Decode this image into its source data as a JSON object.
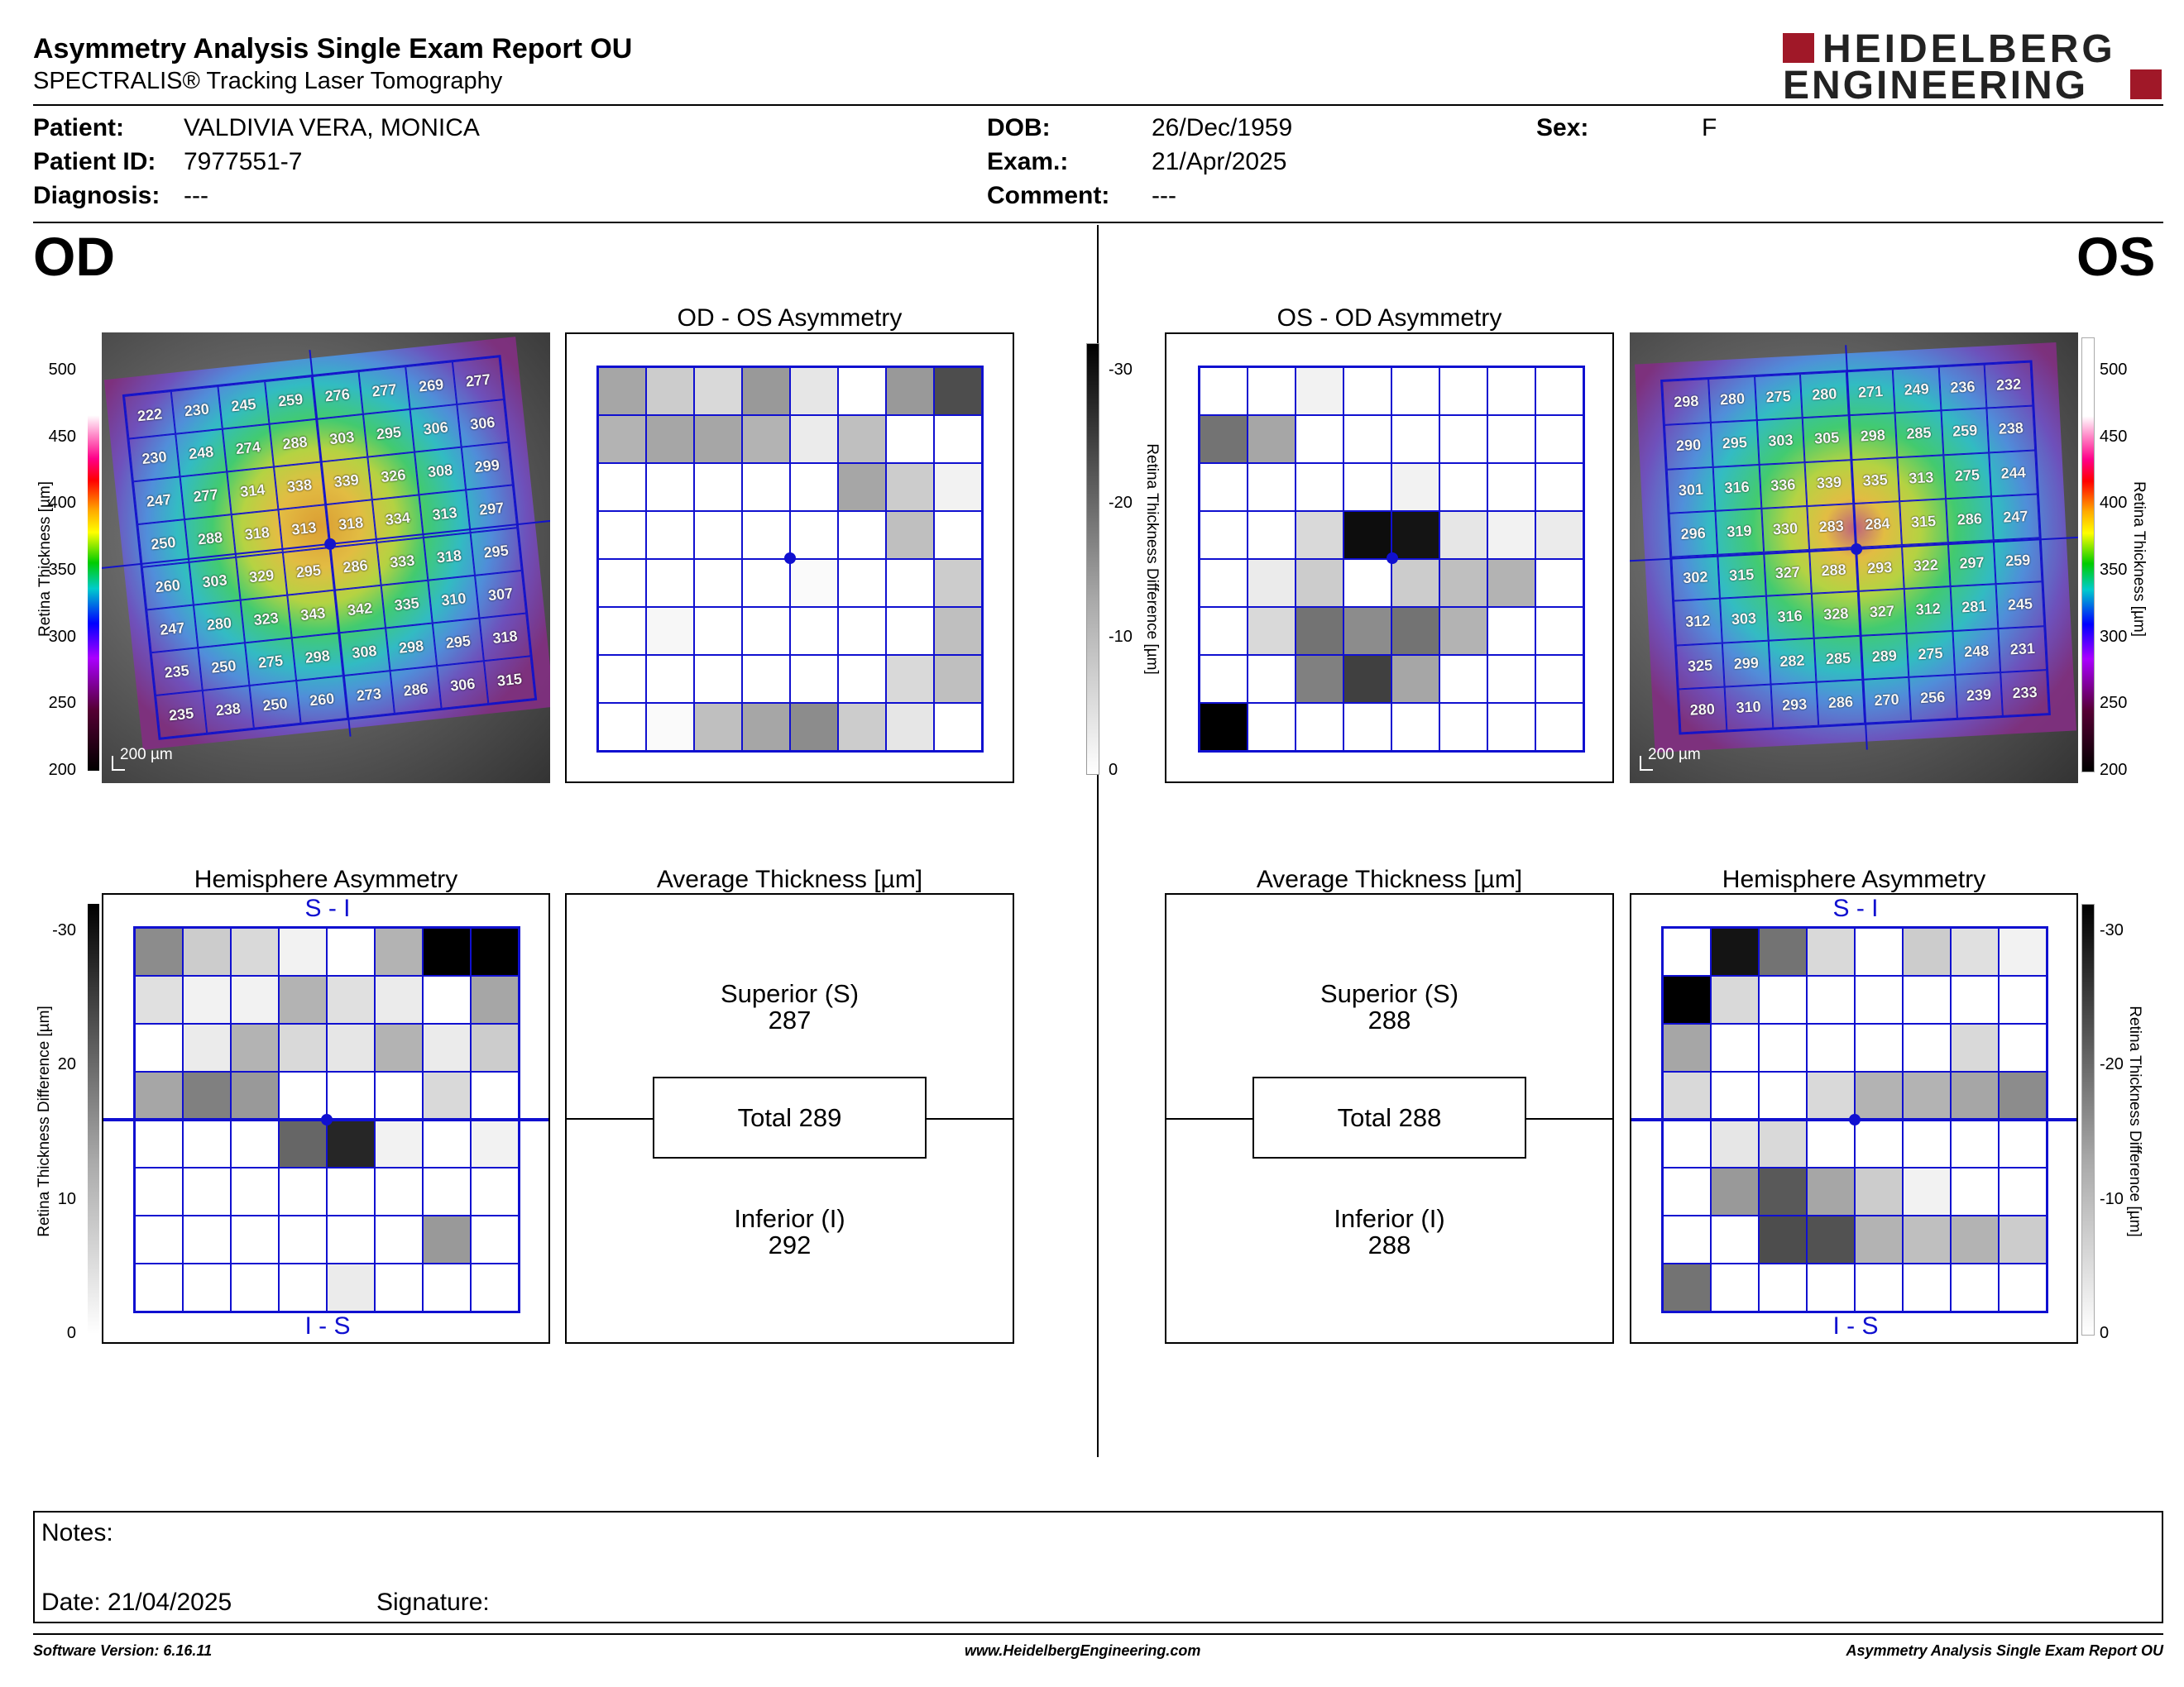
{
  "header": {
    "title": "Asymmetry Analysis Single Exam Report OU",
    "subtitle": "SPECTRALIS® Tracking Laser Tomography",
    "logo_line1": "HEIDELBERG",
    "logo_line2": "ENGINEERING"
  },
  "patient": {
    "patient_label": "Patient:",
    "patient_value": "VALDIVIA VERA, MONICA",
    "id_label": "Patient ID:",
    "id_value": "7977551-7",
    "diagnosis_label": "Diagnosis:",
    "diagnosis_value": "---",
    "dob_label": "DOB:",
    "dob_value": "26/Dec/1959",
    "exam_label": "Exam.:",
    "exam_value": "21/Apr/2025",
    "comment_label": "Comment:",
    "comment_value": "---",
    "sex_label": "Sex:",
    "sex_value": "F"
  },
  "eyes": {
    "od": "OD",
    "os": "OS"
  },
  "panels": {
    "od_os_title": "OD - OS Asymmetry",
    "os_od_title": "OS - OD Asymmetry",
    "hemi_title": "Hemisphere Asymmetry",
    "avg_title": "Average Thickness [µm]",
    "si_label": "S - I",
    "is_label": "I - S",
    "scale_bar_label": "200 µm"
  },
  "axes": {
    "thickness_label": "Retina   Thickness [µm]",
    "thickness_ticks": [
      "500",
      "450",
      "400",
      "350",
      "300",
      "250",
      "200"
    ],
    "diff_label": "Retina Thickness Difference [µm]",
    "diff_ticks_center": [
      "-30",
      "-20",
      "-10",
      "0"
    ],
    "diff_ticks_left": [
      "-30",
      "20",
      "10",
      "0"
    ]
  },
  "colors": {
    "grid_blue": "#1010d0"
  },
  "od_thickness": [
    [
      "222",
      "230",
      "245",
      "259",
      "276",
      "277",
      "269",
      "277"
    ],
    [
      "230",
      "248",
      "274",
      "288",
      "303",
      "295",
      "306",
      "306"
    ],
    [
      "247",
      "277",
      "314",
      "338",
      "339",
      "326",
      "308",
      "299"
    ],
    [
      "250",
      "288",
      "318",
      "313",
      "318",
      "334",
      "313",
      "297"
    ],
    [
      "260",
      "303",
      "329",
      "295",
      "286",
      "333",
      "318",
      "295"
    ],
    [
      "247",
      "280",
      "323",
      "343",
      "342",
      "335",
      "310",
      "307"
    ],
    [
      "235",
      "250",
      "275",
      "298",
      "308",
      "298",
      "295",
      "318"
    ],
    [
      "235",
      "238",
      "250",
      "260",
      "273",
      "286",
      "306",
      "315"
    ]
  ],
  "os_thickness": [
    [
      "298",
      "280",
      "275",
      "280",
      "271",
      "249",
      "236",
      "232"
    ],
    [
      "290",
      "295",
      "303",
      "305",
      "298",
      "285",
      "259",
      "238"
    ],
    [
      "301",
      "316",
      "336",
      "339",
      "335",
      "313",
      "275",
      "244"
    ],
    [
      "296",
      "319",
      "330",
      "283",
      "284",
      "315",
      "286",
      "247"
    ],
    [
      "302",
      "315",
      "327",
      "288",
      "293",
      "322",
      "297",
      "259"
    ],
    [
      "312",
      "303",
      "316",
      "328",
      "327",
      "312",
      "281",
      "245"
    ],
    [
      "325",
      "299",
      "282",
      "285",
      "289",
      "275",
      "248",
      "231"
    ],
    [
      "280",
      "310",
      "293",
      "286",
      "270",
      "256",
      "239",
      "233"
    ]
  ],
  "od_os_asym_gray": [
    [
      0.35,
      0.2,
      0.15,
      0.4,
      0.1,
      0,
      0.4,
      0.7
    ],
    [
      0.3,
      0.35,
      0.35,
      0.3,
      0.08,
      0.25,
      0,
      0
    ],
    [
      0,
      0,
      0,
      0,
      0,
      0.35,
      0.2,
      0.05
    ],
    [
      0,
      0,
      0,
      0,
      0,
      0,
      0.25,
      0
    ],
    [
      0,
      0,
      0,
      0,
      0.02,
      0,
      0,
      0.2
    ],
    [
      0,
      0.03,
      0,
      0,
      0,
      0,
      0,
      0.25
    ],
    [
      0,
      0,
      0,
      0,
      0,
      0,
      0.15,
      0.25
    ],
    [
      0,
      0.02,
      0.25,
      0.35,
      0.45,
      0.2,
      0.1,
      0
    ]
  ],
  "os_od_asym_gray": [
    [
      0,
      0,
      0.05,
      0,
      0,
      0,
      0,
      0
    ],
    [
      0.55,
      0.35,
      0,
      0,
      0,
      0,
      0,
      0
    ],
    [
      0,
      0,
      0,
      0,
      0.05,
      0,
      0,
      0
    ],
    [
      0,
      0,
      0.15,
      0.95,
      0.92,
      0.1,
      0.05,
      0.08
    ],
    [
      0,
      0.08,
      0.2,
      0,
      0.2,
      0.25,
      0.3,
      0
    ],
    [
      0,
      0.15,
      0.55,
      0.45,
      0.55,
      0.3,
      0,
      0
    ],
    [
      0,
      0,
      0.5,
      0.75,
      0.35,
      0,
      0,
      0
    ],
    [
      1,
      0,
      0,
      0,
      0,
      0,
      0,
      0
    ]
  ],
  "od_hemi_gray": [
    [
      0.45,
      0.2,
      0.15,
      0.05,
      0,
      0.3,
      1,
      1
    ],
    [
      0.12,
      0.05,
      0.05,
      0.3,
      0.12,
      0.08,
      0,
      0.35
    ],
    [
      0,
      0.08,
      0.3,
      0.15,
      0.1,
      0.3,
      0.08,
      0.2
    ],
    [
      0.35,
      0.5,
      0.4,
      0,
      0,
      0,
      0.15,
      0
    ],
    [
      0,
      0,
      0,
      0.6,
      0.85,
      0.05,
      0,
      0.05
    ],
    [
      0,
      0,
      0,
      0,
      0,
      0,
      0,
      0
    ],
    [
      0,
      0,
      0,
      0,
      0,
      0,
      0.4,
      0
    ],
    [
      0,
      0,
      0,
      0,
      0.08,
      0,
      0,
      0
    ]
  ],
  "os_hemi_gray": [
    [
      0,
      0.92,
      0.55,
      0.15,
      0,
      0.2,
      0.12,
      0.05
    ],
    [
      1,
      0.15,
      0,
      0,
      0,
      0,
      0,
      0
    ],
    [
      0.35,
      0,
      0,
      0,
      0,
      0,
      0.15,
      0
    ],
    [
      0.15,
      0,
      0,
      0.15,
      0.3,
      0.3,
      0.35,
      0.45
    ],
    [
      0,
      0.1,
      0.15,
      0,
      0,
      0,
      0,
      0
    ],
    [
      0,
      0.4,
      0.65,
      0.35,
      0.2,
      0.05,
      0,
      0
    ],
    [
      0,
      0,
      0.7,
      0.68,
      0.3,
      0.25,
      0.3,
      0.2
    ],
    [
      0.55,
      0,
      0,
      0,
      0,
      0,
      0,
      0
    ]
  ],
  "od_avg": {
    "superior_label": "Superior (S)",
    "superior_value": "287",
    "total_text": "Total 289",
    "inferior_label": "Inferior (I)",
    "inferior_value": "292"
  },
  "os_avg": {
    "superior_label": "Superior (S)",
    "superior_value": "288",
    "total_text": "Total 288",
    "inferior_label": "Inferior (I)",
    "inferior_value": "288"
  },
  "notes": {
    "notes_label": "Notes:",
    "date_text": "Date: 21/04/2025",
    "signature_label": "Signature:"
  },
  "footer": {
    "software": "Software Version: 6.16.11",
    "website": "www.HeidelbergEngineering.com",
    "report_name": "Asymmetry Analysis Single Exam Report OU"
  }
}
